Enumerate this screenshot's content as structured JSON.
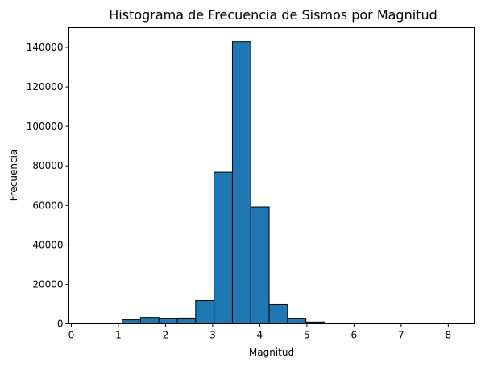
{
  "chart_data": {
    "type": "bar",
    "title": "Histograma de Frecuencia de Sismos por Magnitud",
    "xlabel": "Magnitud",
    "ylabel": "Frecuencia",
    "bar_color": "#1f77b4",
    "edge_color": "#000000",
    "xlim": [
      -0.05,
      8.55
    ],
    "ylim": [
      0,
      150000
    ],
    "xticks": [
      0,
      1,
      2,
      3,
      4,
      5,
      6,
      7,
      8
    ],
    "yticks": [
      0,
      20000,
      40000,
      60000,
      80000,
      100000,
      120000,
      140000
    ],
    "bins": [
      {
        "x0": 0.3,
        "x1": 0.69,
        "value": 50
      },
      {
        "x0": 0.69,
        "x1": 1.08,
        "value": 400
      },
      {
        "x0": 1.08,
        "x1": 1.47,
        "value": 2000
      },
      {
        "x0": 1.47,
        "x1": 1.86,
        "value": 3200
      },
      {
        "x0": 1.86,
        "x1": 2.25,
        "value": 2800
      },
      {
        "x0": 2.25,
        "x1": 2.64,
        "value": 2900
      },
      {
        "x0": 2.64,
        "x1": 3.03,
        "value": 11800
      },
      {
        "x0": 3.03,
        "x1": 3.42,
        "value": 76800
      },
      {
        "x0": 3.42,
        "x1": 3.81,
        "value": 143000
      },
      {
        "x0": 3.81,
        "x1": 4.2,
        "value": 59300
      },
      {
        "x0": 4.2,
        "x1": 4.59,
        "value": 9800
      },
      {
        "x0": 4.59,
        "x1": 4.98,
        "value": 2800
      },
      {
        "x0": 4.98,
        "x1": 5.37,
        "value": 900
      },
      {
        "x0": 5.37,
        "x1": 5.76,
        "value": 400
      },
      {
        "x0": 5.76,
        "x1": 6.15,
        "value": 350
      },
      {
        "x0": 6.15,
        "x1": 6.54,
        "value": 250
      },
      {
        "x0": 6.54,
        "x1": 6.93,
        "value": 100
      },
      {
        "x0": 6.93,
        "x1": 7.32,
        "value": 60
      },
      {
        "x0": 7.32,
        "x1": 7.71,
        "value": 30
      },
      {
        "x0": 7.71,
        "x1": 8.1,
        "value": 10
      }
    ]
  }
}
